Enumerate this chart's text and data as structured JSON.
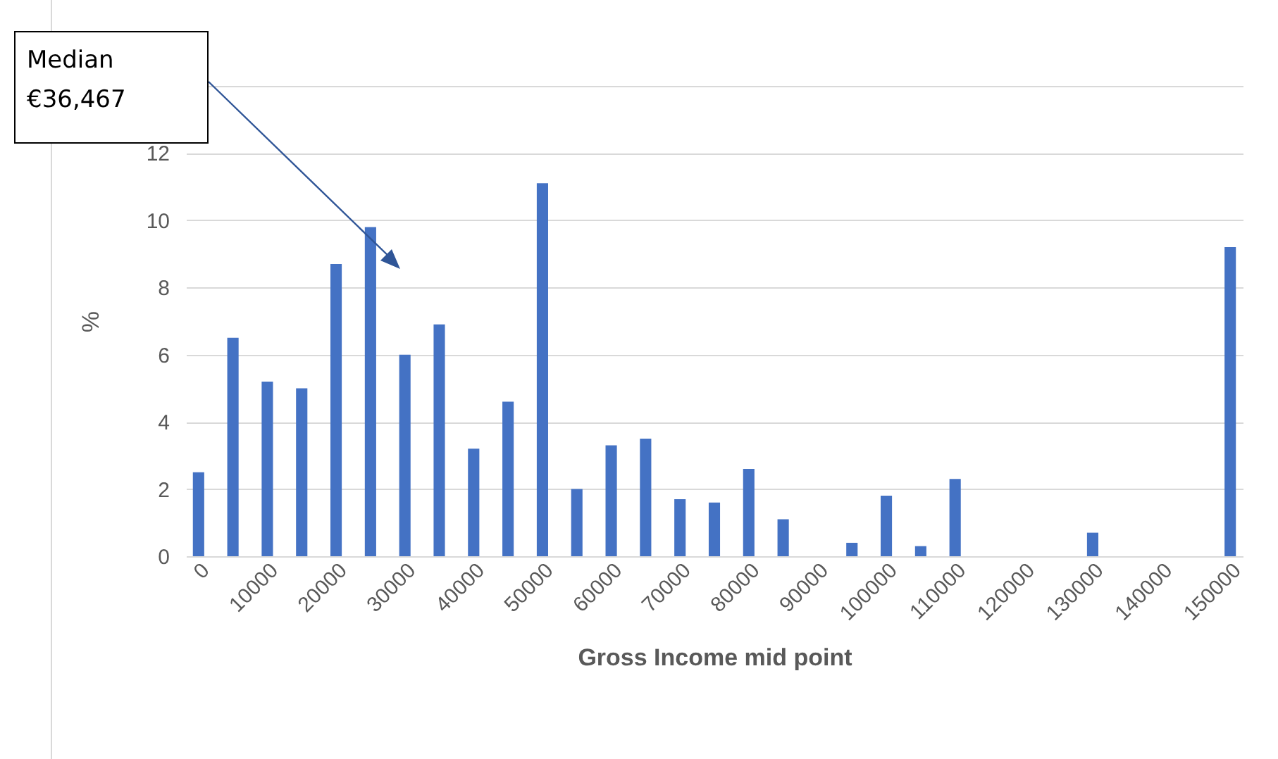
{
  "chart_data": {
    "type": "bar",
    "xlabel": "Gross  Income mid point",
    "ylabel": "%",
    "categories": [
      "0",
      null,
      "10000",
      null,
      "20000",
      null,
      "30000",
      null,
      "40000",
      null,
      "50000",
      null,
      "60000",
      null,
      "70000",
      null,
      "80000",
      null,
      "90000",
      null,
      "100000",
      null,
      "110000",
      null,
      "120000",
      null,
      "130000",
      null,
      "140000",
      null,
      "150000"
    ],
    "values": [
      2.5,
      6.5,
      5.2,
      5.0,
      8.7,
      9.8,
      6.0,
      6.9,
      3.2,
      4.6,
      11.1,
      2.0,
      3.3,
      3.5,
      1.7,
      1.6,
      2.6,
      1.1,
      0,
      0.4,
      1.8,
      0.3,
      2.3,
      0,
      0,
      0,
      0.7,
      0,
      0,
      0,
      9.2
    ],
    "color": "#4472c4",
    "ylim": [
      0,
      14
    ],
    "yticks": [
      0,
      2,
      4,
      6,
      8,
      10,
      12,
      {
        "value": 14,
        "label": null
      }
    ],
    "grid": "y",
    "annotations": [
      "Median\n€36,467"
    ]
  }
}
